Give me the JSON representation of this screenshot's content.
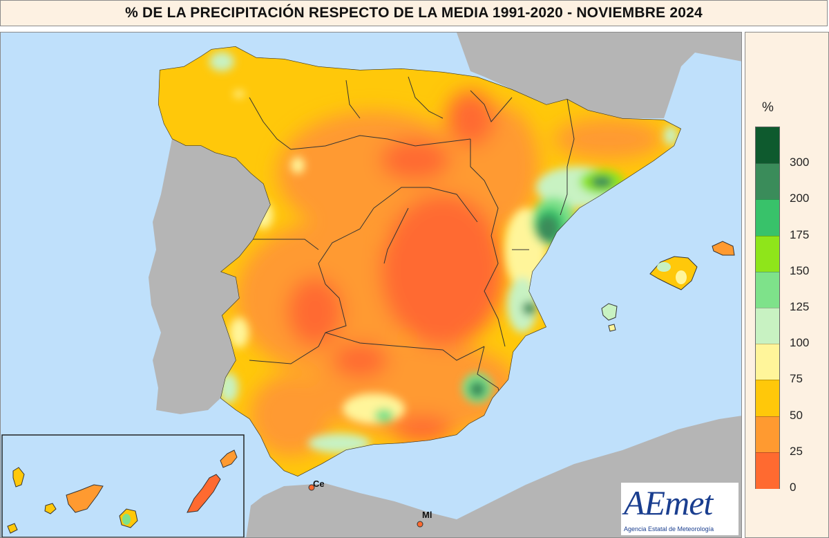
{
  "title": "% DE LA PRECIPITACIÓN RESPECTO DE LA MEDIA 1991-2020 - NOVIEMBRE 2024",
  "legend": {
    "unit": "%",
    "labels": [
      "300",
      "200",
      "175",
      "150",
      "125",
      "100",
      "75",
      "50",
      "25",
      "0"
    ],
    "colors": [
      "#0e5a2e",
      "#3a8c5a",
      "#38c26a",
      "#8fe51a",
      "#7ee28a",
      "#c8f2c2",
      "#fff59a",
      "#ffc80a",
      "#ff9a30",
      "#ff6a30"
    ]
  },
  "map_colors": {
    "sea": "#bfe0fb",
    "foreign_land": "#b5b5b5",
    "border": "#333333"
  },
  "labels": {
    "ceuta": "Ce",
    "melilla": "Ml"
  },
  "logo": {
    "name": "AEmet",
    "subtitle": "Agencia Estatal de Meteorología"
  }
}
